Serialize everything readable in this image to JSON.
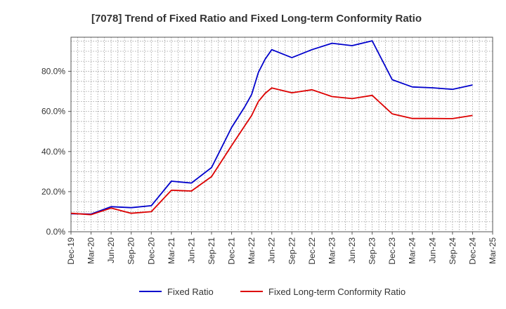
{
  "chart_data": {
    "type": "line",
    "title": "[7078]  Trend of Fixed Ratio and Fixed Long-term Conformity Ratio",
    "xlabel": "",
    "ylabel": "",
    "x_ticks": [
      "Dec-19",
      "Mar-20",
      "Jun-20",
      "Sep-20",
      "Dec-20",
      "Mar-21",
      "Jun-21",
      "Sep-21",
      "Dec-21",
      "Mar-22",
      "Jun-22",
      "Sep-22",
      "Dec-22",
      "Mar-23",
      "Jun-23",
      "Sep-23",
      "Dec-23",
      "Mar-24",
      "Jun-24",
      "Sep-24",
      "Dec-24",
      "Mar-25"
    ],
    "y_ticks": [
      "0.0%",
      "20.0%",
      "40.0%",
      "60.0%",
      "80.0%"
    ],
    "ylim": [
      0,
      97
    ],
    "grid": true,
    "legend_position": "bottom",
    "series": [
      {
        "name": "Fixed Ratio",
        "color": "#0000cc",
        "points": [
          [
            "Dec-19",
            9.0
          ],
          [
            "Mar-20",
            8.8
          ],
          [
            "Jun-20",
            12.5
          ],
          [
            "Sep-20",
            12.0
          ],
          [
            "Dec-20",
            13.0
          ],
          [
            "Mar-21",
            25.2
          ],
          [
            "Jun-21",
            24.3
          ],
          [
            "Sep-21",
            32.0
          ],
          [
            "Dec-21",
            52.0
          ],
          [
            "Feb-22",
            62.5
          ],
          [
            "Mar-22",
            68.5
          ],
          [
            "Apr-22",
            79.5
          ],
          [
            "May-22",
            86.0
          ],
          [
            "Jun-22",
            90.8
          ],
          [
            "Sep-22",
            86.8
          ],
          [
            "Dec-22",
            90.8
          ],
          [
            "Mar-23",
            94.0
          ],
          [
            "Jun-23",
            92.8
          ],
          [
            "Sep-23",
            95.2
          ],
          [
            "Dec-23",
            75.8
          ],
          [
            "Mar-24",
            72.2
          ],
          [
            "Jun-24",
            71.8
          ],
          [
            "Sep-24",
            71.0
          ],
          [
            "Dec-24",
            73.2
          ]
        ]
      },
      {
        "name": "Fixed Long-term Conformity Ratio",
        "color": "#dd0000",
        "points": [
          [
            "Dec-19",
            9.2
          ],
          [
            "Mar-20",
            8.5
          ],
          [
            "Jun-20",
            11.8
          ],
          [
            "Sep-20",
            9.2
          ],
          [
            "Dec-20",
            10.0
          ],
          [
            "Mar-21",
            20.7
          ],
          [
            "Jun-21",
            20.3
          ],
          [
            "Sep-21",
            27.5
          ],
          [
            "Dec-21",
            43.0
          ],
          [
            "Feb-22",
            53.0
          ],
          [
            "Mar-22",
            58.0
          ],
          [
            "Apr-22",
            65.0
          ],
          [
            "May-22",
            69.0
          ],
          [
            "Jun-22",
            71.7
          ],
          [
            "Sep-22",
            69.3
          ],
          [
            "Dec-22",
            70.8
          ],
          [
            "Mar-23",
            67.4
          ],
          [
            "Jun-23",
            66.4
          ],
          [
            "Sep-23",
            68.0
          ],
          [
            "Dec-23",
            58.8
          ],
          [
            "Mar-24",
            56.5
          ],
          [
            "Jun-24",
            56.5
          ],
          [
            "Sep-24",
            56.4
          ],
          [
            "Dec-24",
            58.0
          ]
        ]
      }
    ]
  }
}
